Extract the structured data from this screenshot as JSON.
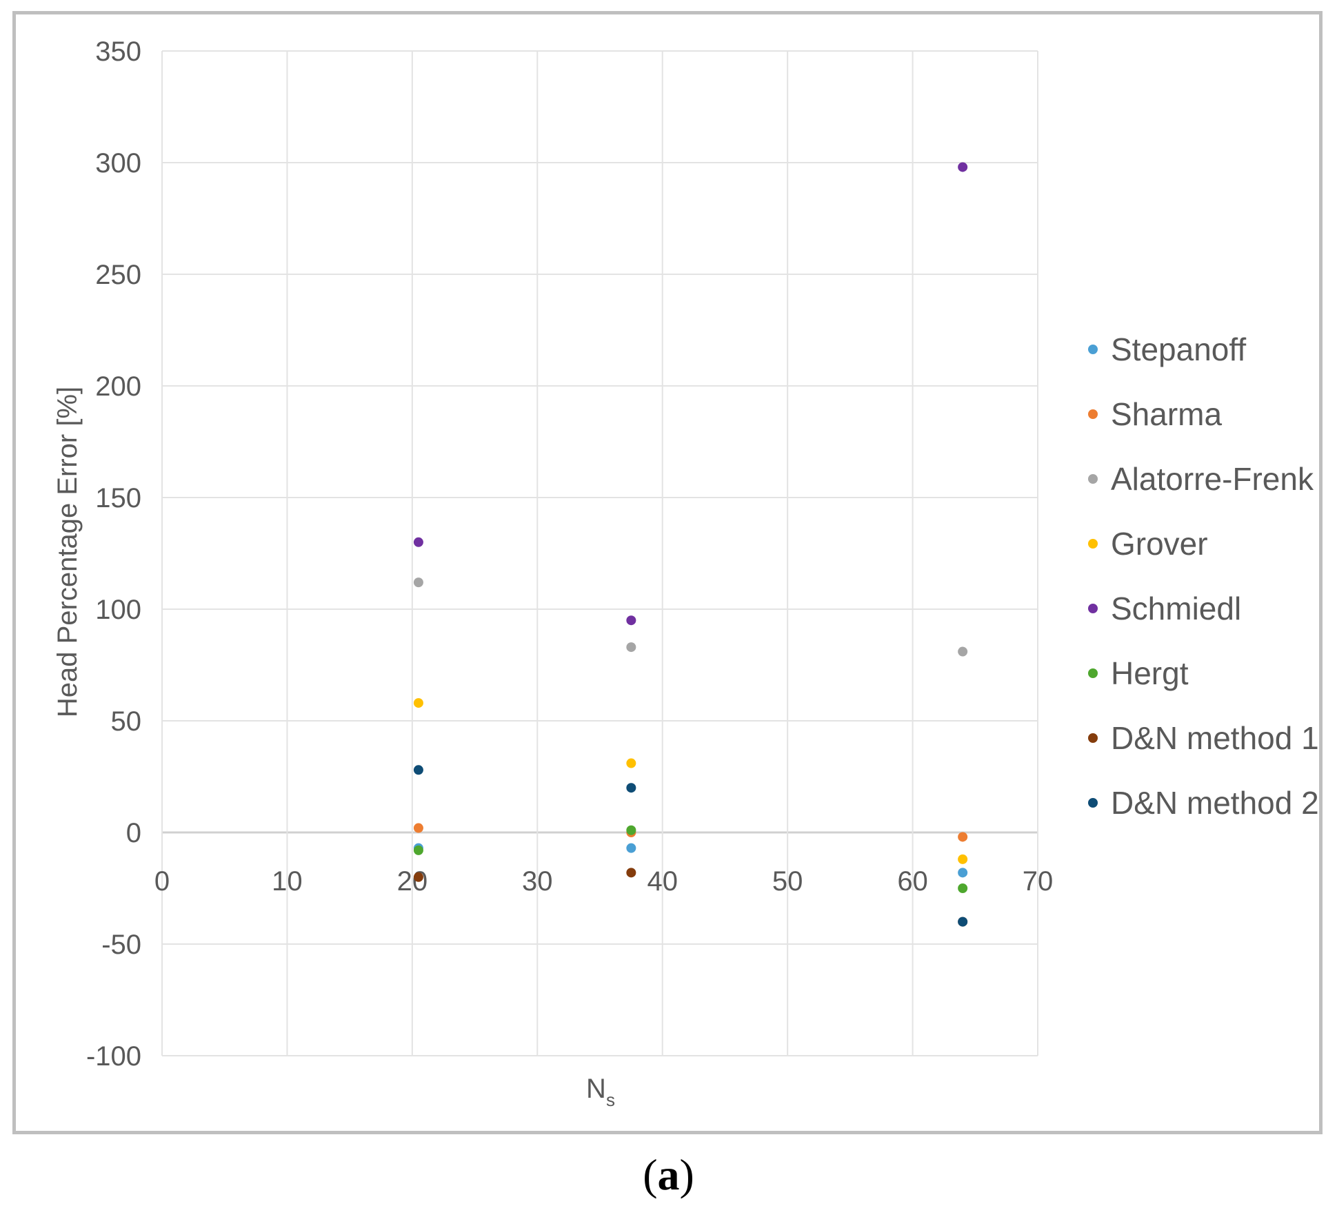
{
  "chart_data": {
    "type": "scatter",
    "title": "",
    "xlabel": "N",
    "xlabel_subscript": "s",
    "ylabel": "Head Percentage Error [%]",
    "xlim": [
      0,
      70
    ],
    "ylim": [
      -100,
      350
    ],
    "x_ticks": [
      0,
      10,
      20,
      30,
      40,
      50,
      60,
      70
    ],
    "y_ticks": [
      -100,
      -50,
      0,
      50,
      100,
      150,
      200,
      250,
      300,
      350
    ],
    "grid": true,
    "legend_position": "right",
    "series": [
      {
        "name": "Stepanoff",
        "color": "#4a9fd4",
        "points": [
          [
            20.5,
            -7
          ],
          [
            37.5,
            -7
          ],
          [
            64,
            -18
          ]
        ]
      },
      {
        "name": "Sharma",
        "color": "#ed7d31",
        "points": [
          [
            20.5,
            2
          ],
          [
            37.5,
            0
          ],
          [
            64,
            -2
          ]
        ]
      },
      {
        "name": "Alatorre-Frenk",
        "color": "#a5a5a5",
        "points": [
          [
            20.5,
            112
          ],
          [
            37.5,
            83
          ],
          [
            64,
            81
          ]
        ]
      },
      {
        "name": "Grover",
        "color": "#ffc000",
        "points": [
          [
            20.5,
            58
          ],
          [
            37.5,
            31
          ],
          [
            64,
            -12
          ]
        ]
      },
      {
        "name": "Schmiedl",
        "color": "#7030a0",
        "points": [
          [
            20.5,
            130
          ],
          [
            37.5,
            95
          ],
          [
            64,
            298
          ]
        ]
      },
      {
        "name": "Hergt",
        "color": "#4ea72e",
        "points": [
          [
            20.5,
            -8
          ],
          [
            37.5,
            1
          ],
          [
            64,
            -25
          ]
        ]
      },
      {
        "name": "D&N method 1",
        "color": "#843c0c",
        "points": [
          [
            20.5,
            -20
          ],
          [
            37.5,
            -18
          ],
          [
            64,
            -40
          ]
        ]
      },
      {
        "name": "D&N method 2",
        "color": "#0e4c75",
        "points": [
          [
            20.5,
            28
          ],
          [
            37.5,
            20
          ],
          [
            64,
            -40
          ]
        ]
      }
    ]
  },
  "panel_label": {
    "open": "(",
    "letter": "a",
    "close": ")"
  }
}
